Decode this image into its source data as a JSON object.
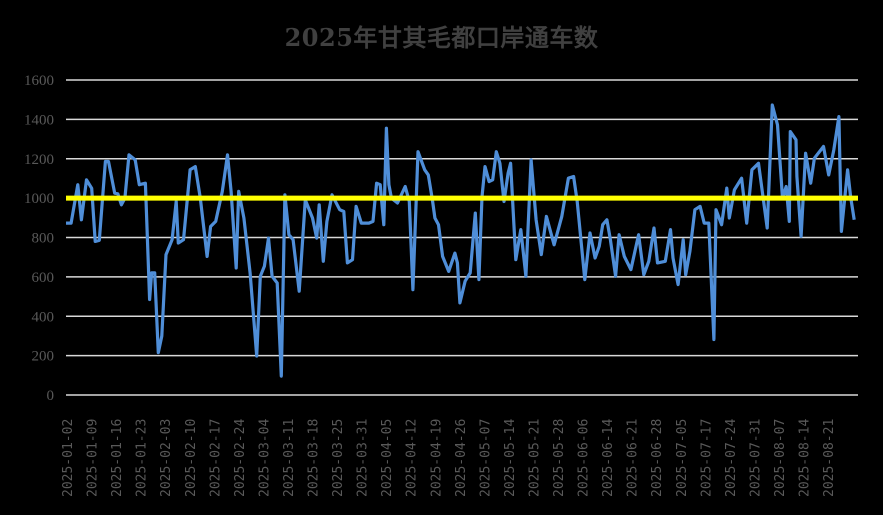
{
  "chart_data": {
    "type": "line",
    "title": "2025年甘其毛都口岸通车数",
    "xlabel": "",
    "ylabel": "",
    "ylim": [
      0,
      1600
    ],
    "yticks": [
      0,
      200,
      400,
      600,
      800,
      1000,
      1200,
      1400,
      1600
    ],
    "grid": true,
    "legend": "none",
    "colors": {
      "series": "#4F8ED8",
      "reference": "#FFFF00",
      "grid": "#D9D9D9",
      "text": "#595959",
      "title": "#404040",
      "background": "#000000"
    },
    "categories": [
      "2025-01-02",
      "2025-01-09",
      "2025-01-16",
      "2025-01-23",
      "2025-02-03",
      "2025-02-10",
      "2025-02-17",
      "2025-02-24",
      "2025-03-04",
      "2025-03-11",
      "2025-03-18",
      "2025-03-25",
      "2025-03-31",
      "2025-04-05",
      "2025-04-12",
      "2025-04-19",
      "2025-04-26",
      "2025-05-07",
      "2025-05-14",
      "2025-05-21",
      "2025-05-28",
      "2025-06-06",
      "2025-06-14",
      "2025-06-21",
      "2025-06-28",
      "2025-07-05",
      "2025-07-17",
      "2025-07-24",
      "2025-07-31",
      "2025-08-07",
      "2025-08-14",
      "2025-08-21"
    ],
    "reference_line": {
      "name": "1000 reference",
      "value": 1000
    },
    "series": [
      {
        "name": "通车数",
        "x_frac": [
          0.0,
          0.0065,
          0.0149,
          0.0194,
          0.0259,
          0.0324,
          0.0369,
          0.0421,
          0.0498,
          0.0537,
          0.0615,
          0.0654,
          0.0699,
          0.0744,
          0.0796,
          0.0874,
          0.0926,
          0.1003,
          0.1055,
          0.1081,
          0.112,
          0.1165,
          0.121,
          0.1262,
          0.134,
          0.1392,
          0.1418,
          0.1483,
          0.1567,
          0.1632,
          0.1696,
          0.1781,
          0.1826,
          0.189,
          0.1974,
          0.2039,
          0.2084,
          0.2149,
          0.2181,
          0.2246,
          0.2324,
          0.2408,
          0.2453,
          0.2505,
          0.2557,
          0.2602,
          0.2667,
          0.2718,
          0.2764,
          0.2815,
          0.2867,
          0.2945,
          0.3022,
          0.3113,
          0.3165,
          0.3197,
          0.3249,
          0.3294,
          0.3359,
          0.3456,
          0.3508,
          0.3553,
          0.3618,
          0.3663,
          0.3728,
          0.3824,
          0.3876,
          0.3922,
          0.3967,
          0.4012,
          0.4045,
          0.4077,
          0.4109,
          0.4186,
          0.4283,
          0.4335,
          0.438,
          0.4445,
          0.4529,
          0.4574,
          0.4626,
          0.4658,
          0.4703,
          0.4755,
          0.4832,
          0.491,
          0.4942,
          0.4974,
          0.5039,
          0.5104,
          0.5168,
          0.5213,
          0.5252,
          0.5291,
          0.5342,
          0.5388,
          0.5433,
          0.5478,
          0.553,
          0.5582,
          0.5614,
          0.5679,
          0.5742,
          0.5807,
          0.5872,
          0.5936,
          0.6001,
          0.6066,
          0.6163,
          0.626,
          0.6344,
          0.6409,
          0.6454,
          0.6551,
          0.6616,
          0.668,
          0.6732,
          0.6777,
          0.6829,
          0.6874,
          0.6939,
          0.6984,
          0.7049,
          0.7133,
          0.723,
          0.7295,
          0.7359,
          0.7424,
          0.7469,
          0.7567,
          0.7632,
          0.7664,
          0.7728,
          0.7793,
          0.7825,
          0.7877,
          0.7941,
          0.8006,
          0.8058,
          0.8116,
          0.8181,
          0.8207,
          0.8278,
          0.8343,
          0.8375,
          0.844,
          0.853,
          0.8595,
          0.866,
          0.8744,
          0.8853,
          0.8918,
          0.8983,
          0.9047,
          0.9093,
          0.9132,
          0.9145,
          0.9217,
          0.9229,
          0.9281,
          0.9338,
          0.9403,
          0.9449,
          0.9565,
          0.963,
          0.9694,
          0.9759,
          0.9791,
          0.9869,
          0.9907,
          0.9952,
          1.0
        ],
        "values": [
          873,
          873,
          1068,
          890,
          1093,
          1050,
          780,
          786,
          1186,
          1186,
          1025,
          1022,
          966,
          1000,
          1220,
          1194,
          1068,
          1076,
          485,
          620,
          620,
          215,
          299,
          713,
          789,
          983,
          772,
          789,
          1144,
          1160,
          1000,
          704,
          856,
          882,
          1034,
          1220,
          1034,
          645,
          1034,
          899,
          620,
          198,
          603,
          654,
          797,
          603,
          569,
          96,
          1017,
          814,
          789,
          527,
          991,
          899,
          797,
          966,
          679,
          882,
          1017,
          941,
          932,
          671,
          687,
          958,
          873,
          873,
          882,
          1076,
          1068,
          865,
          1355,
          1068,
          1000,
          975,
          1059,
          983,
          535,
          1236,
          1144,
          1118,
          991,
          899,
          865,
          704,
          628,
          721,
          671,
          468,
          578,
          620,
          924,
          586,
          1008,
          1160,
          1084,
          1093,
          1236,
          1177,
          983,
          1127,
          1177,
          687,
          840,
          603,
          1194,
          890,
          713,
          907,
          763,
          907,
          1101,
          1110,
          983,
          586,
          823,
          696,
          755,
          865,
          890,
          789,
          603,
          814,
          704,
          637,
          814,
          611,
          679,
          848,
          671,
          679,
          840,
          696,
          561,
          789,
          611,
          730,
          941,
          958,
          873,
          873,
          282,
          941,
          865,
          1051,
          899,
          1042,
          1101,
          873,
          1144,
          1177,
          848,
          1473,
          1372,
          1000,
          1059,
          882,
          1338,
          1296,
          1110,
          806,
          1228,
          1076,
          1203,
          1262,
          1118,
          1245,
          1414,
          831,
          1144,
          1008,
          890
        ]
      }
    ]
  }
}
